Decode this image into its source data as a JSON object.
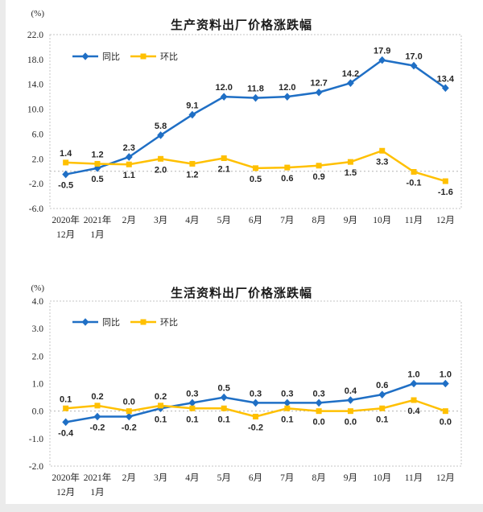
{
  "page": {
    "background_color": "#ffffff",
    "margin_strip_color": "#ebebeb"
  },
  "colors": {
    "tongbi_blue": "#1F6FC5",
    "huanbi_gold": "#FFC000",
    "plot_border": "#c4c4c4",
    "zero_line": "#b4b4b4"
  },
  "chart_data": [
    {
      "type": "line",
      "title": "生产资料出厂价格涨跌幅",
      "unit_label": "(%)",
      "legend_position": "top-left",
      "grid": "zero-line-only",
      "ylim": [
        -6,
        22
      ],
      "ytick_step": 4,
      "categories": [
        [
          "2020年",
          "12月"
        ],
        [
          "2021年",
          "1月"
        ],
        "2月",
        "3月",
        "4月",
        "5月",
        "6月",
        "7月",
        "8月",
        "9月",
        "10月",
        "11月",
        "12月"
      ],
      "series": [
        {
          "name": "同比",
          "marker": "diamond",
          "color": "#1F6FC5",
          "values": [
            -0.5,
            0.5,
            2.3,
            5.8,
            9.1,
            12.0,
            11.8,
            12.0,
            12.7,
            14.2,
            17.9,
            17.0,
            13.4
          ]
        },
        {
          "name": "环比",
          "marker": "square",
          "color": "#FFC000",
          "values": [
            1.4,
            1.2,
            1.1,
            2.0,
            1.2,
            2.1,
            0.5,
            0.6,
            0.9,
            1.5,
            3.3,
            -0.1,
            -1.6
          ]
        }
      ]
    },
    {
      "type": "line",
      "title": "生活资料出厂价格涨跌幅",
      "unit_label": "(%)",
      "legend_position": "top-left",
      "grid": "zero-line-only",
      "ylim": [
        -2,
        4
      ],
      "ytick_step": 1,
      "categories": [
        [
          "2020年",
          "12月"
        ],
        [
          "2021年",
          "1月"
        ],
        "2月",
        "3月",
        "4月",
        "5月",
        "6月",
        "7月",
        "8月",
        "9月",
        "10月",
        "11月",
        "12月"
      ],
      "series": [
        {
          "name": "同比",
          "marker": "diamond",
          "color": "#1F6FC5",
          "values": [
            -0.4,
            -0.2,
            -0.2,
            0.1,
            0.3,
            0.5,
            0.3,
            0.3,
            0.3,
            0.4,
            0.6,
            1.0,
            1.0
          ]
        },
        {
          "name": "环比",
          "marker": "square",
          "color": "#FFC000",
          "values": [
            0.1,
            0.2,
            0.0,
            0.2,
            0.1,
            0.1,
            -0.2,
            0.1,
            0.0,
            0.0,
            0.1,
            0.4,
            0.0
          ]
        }
      ]
    }
  ]
}
